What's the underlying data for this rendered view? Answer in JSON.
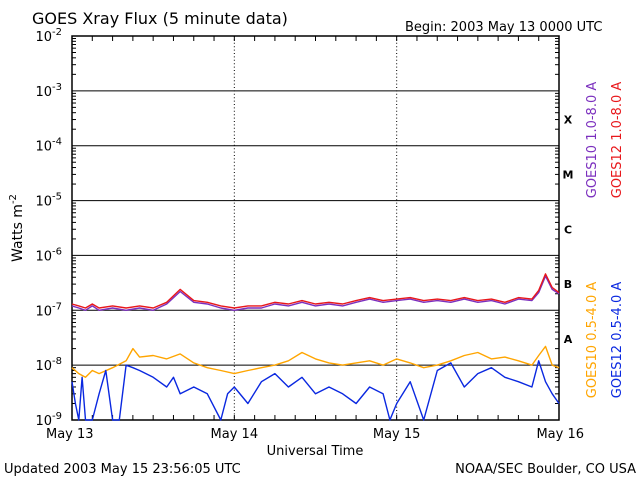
{
  "chart_data": {
    "type": "line",
    "title": "GOES Xray Flux (5 minute data)",
    "begin_label": "Begin:  2003 May 13 0000 UTC",
    "xlabel": "Universal Time",
    "ylabel": "Watts m",
    "ylabel_sup": "-2",
    "y_scale": "log",
    "ylim": [
      1e-09,
      0.01
    ],
    "xlim": [
      0,
      72
    ],
    "x_unit": "hours since 2003 May 13 0000 UTC",
    "grid": true,
    "x_ticks": [
      {
        "label": "May 13",
        "x": 0
      },
      {
        "label": "May 14",
        "x": 24
      },
      {
        "label": "May 15",
        "x": 48
      },
      {
        "label": "May 16",
        "x": 72
      }
    ],
    "y_ticks": [
      {
        "base": "10",
        "exp": "-2",
        "value": 0.01
      },
      {
        "base": "10",
        "exp": "-3",
        "value": 0.001
      },
      {
        "base": "10",
        "exp": "-4",
        "value": 0.0001
      },
      {
        "base": "10",
        "exp": "-5",
        "value": 1e-05
      },
      {
        "base": "10",
        "exp": "-6",
        "value": 1e-06
      },
      {
        "base": "10",
        "exp": "-7",
        "value": 1e-07
      },
      {
        "base": "10",
        "exp": "-8",
        "value": 1e-08
      },
      {
        "base": "10",
        "exp": "-9",
        "value": 1e-09
      }
    ],
    "flare_classes": [
      {
        "label": "X",
        "value": 0.0003
      },
      {
        "label": "M",
        "value": 3e-05
      },
      {
        "label": "C",
        "value": 3e-06
      },
      {
        "label": "B",
        "value": 3e-07
      },
      {
        "label": "A",
        "value": 3e-08
      }
    ],
    "series": [
      {
        "name": "GOES10 1.0-8.0 A",
        "color": "#7b2fbe",
        "x": [
          0,
          1,
          2,
          3,
          4,
          6,
          8,
          10,
          12,
          14,
          16,
          18,
          20,
          22,
          24,
          26,
          28,
          30,
          32,
          34,
          36,
          38,
          40,
          42,
          44,
          46,
          48,
          50,
          52,
          54,
          56,
          58,
          60,
          62,
          64,
          66,
          68,
          69,
          70,
          71,
          72
        ],
        "values": [
          1.2e-07,
          1.1e-07,
          1e-07,
          1.2e-07,
          1e-07,
          1.1e-07,
          1e-07,
          1.1e-07,
          1e-07,
          1.3e-07,
          2.2e-07,
          1.4e-07,
          1.3e-07,
          1.1e-07,
          1e-07,
          1.1e-07,
          1.1e-07,
          1.3e-07,
          1.2e-07,
          1.4e-07,
          1.2e-07,
          1.3e-07,
          1.2e-07,
          1.4e-07,
          1.6e-07,
          1.4e-07,
          1.5e-07,
          1.6e-07,
          1.4e-07,
          1.5e-07,
          1.4e-07,
          1.6e-07,
          1.4e-07,
          1.5e-07,
          1.3e-07,
          1.6e-07,
          1.5e-07,
          2.1e-07,
          4.2e-07,
          2.4e-07,
          2e-07
        ]
      },
      {
        "name": "GOES12 1.0-8.0 A",
        "color": "#e8171b",
        "x": [
          0,
          1,
          2,
          3,
          4,
          6,
          8,
          10,
          12,
          14,
          16,
          18,
          20,
          22,
          24,
          26,
          28,
          30,
          32,
          34,
          36,
          38,
          40,
          42,
          44,
          46,
          48,
          50,
          52,
          54,
          56,
          58,
          60,
          62,
          64,
          66,
          68,
          69,
          70,
          71,
          72
        ],
        "values": [
          1.3e-07,
          1.2e-07,
          1.1e-07,
          1.3e-07,
          1.1e-07,
          1.2e-07,
          1.1e-07,
          1.2e-07,
          1.1e-07,
          1.4e-07,
          2.4e-07,
          1.5e-07,
          1.4e-07,
          1.2e-07,
          1.1e-07,
          1.2e-07,
          1.2e-07,
          1.4e-07,
          1.3e-07,
          1.5e-07,
          1.3e-07,
          1.4e-07,
          1.3e-07,
          1.5e-07,
          1.7e-07,
          1.5e-07,
          1.6e-07,
          1.7e-07,
          1.5e-07,
          1.6e-07,
          1.5e-07,
          1.7e-07,
          1.5e-07,
          1.6e-07,
          1.4e-07,
          1.7e-07,
          1.6e-07,
          2.3e-07,
          4.6e-07,
          2.6e-07,
          2.1e-07
        ]
      },
      {
        "name": "GOES10 0.5-4.0 A",
        "color": "#ffa500",
        "x": [
          0,
          1,
          2,
          3,
          4,
          6,
          8,
          9,
          10,
          12,
          14,
          16,
          18,
          20,
          22,
          24,
          26,
          28,
          30,
          32,
          34,
          36,
          38,
          40,
          42,
          44,
          46,
          48,
          50,
          52,
          54,
          56,
          58,
          60,
          62,
          64,
          66,
          68,
          69,
          70,
          71,
          72
        ],
        "values": [
          9e-09,
          7e-09,
          6e-09,
          8e-09,
          7e-09,
          9e-09,
          1.2e-08,
          2e-08,
          1.4e-08,
          1.5e-08,
          1.3e-08,
          1.6e-08,
          1.1e-08,
          9e-09,
          8e-09,
          7e-09,
          8e-09,
          9e-09,
          1e-08,
          1.2e-08,
          1.7e-08,
          1.3e-08,
          1.1e-08,
          1e-08,
          1.1e-08,
          1.2e-08,
          1e-08,
          1.3e-08,
          1.1e-08,
          9e-09,
          1e-08,
          1.2e-08,
          1.5e-08,
          1.7e-08,
          1.3e-08,
          1.4e-08,
          1.2e-08,
          1e-08,
          1.5e-08,
          2.2e-08,
          1e-08,
          9e-09
        ]
      },
      {
        "name": "GOES12 0.5-4.0 A",
        "color": "#0a28e0",
        "x": [
          0,
          0.5,
          1,
          1.5,
          2,
          3,
          4,
          5,
          6,
          7,
          8,
          9,
          10,
          12,
          14,
          15,
          16,
          18,
          20,
          22,
          23,
          24,
          26,
          28,
          30,
          32,
          34,
          36,
          38,
          40,
          42,
          44,
          46,
          47,
          48,
          50,
          52,
          54,
          56,
          58,
          60,
          62,
          64,
          66,
          68,
          69,
          70,
          71,
          72
        ],
        "values": [
          5e-09,
          2e-09,
          1e-09,
          6e-09,
          1e-09,
          1e-09,
          3e-09,
          8e-09,
          1e-09,
          1e-09,
          1e-08,
          9e-09,
          8e-09,
          6e-09,
          4e-09,
          6e-09,
          3e-09,
          4e-09,
          3e-09,
          1e-09,
          3e-09,
          4e-09,
          2e-09,
          5e-09,
          7e-09,
          4e-09,
          6e-09,
          3e-09,
          4e-09,
          3e-09,
          2e-09,
          4e-09,
          3e-09,
          1e-09,
          2e-09,
          5e-09,
          1e-09,
          8e-09,
          1.1e-08,
          4e-09,
          7e-09,
          9e-09,
          6e-09,
          5e-09,
          4e-09,
          1.2e-08,
          5e-09,
          3e-09,
          2e-09
        ]
      }
    ]
  },
  "footer": {
    "updated": "Updated 2003 May 15 23:56:05 UTC",
    "credit": "NOAA/SEC Boulder, CO USA"
  }
}
